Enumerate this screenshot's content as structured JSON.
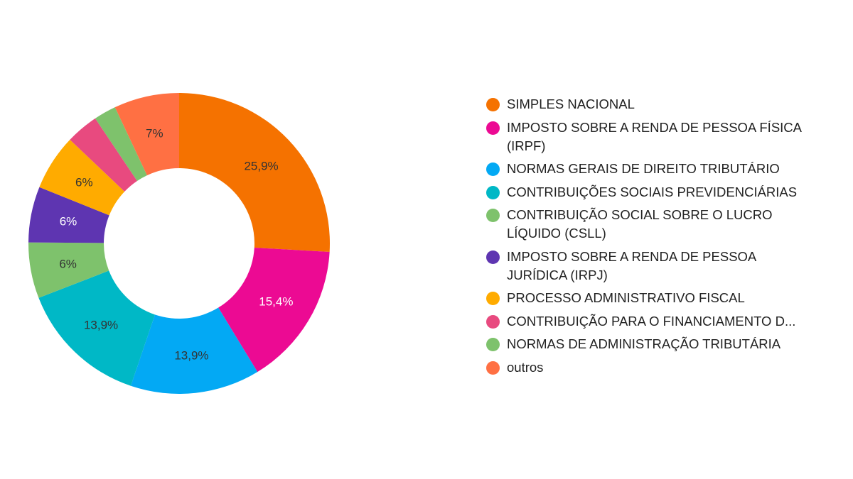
{
  "chart_data": {
    "type": "pie",
    "donut": true,
    "legend_position": "right",
    "slices": [
      {
        "name": "SIMPLES NACIONAL",
        "value": 25.9,
        "label": "25,9%",
        "color": "#f57200",
        "label_color": "#333333"
      },
      {
        "name": "IMPOSTO SOBRE A RENDA DE PESSOA FÍSICA (IRPF)",
        "value": 15.4,
        "label": "15,4%",
        "color": "#ec0a93",
        "label_color": "#ffffff"
      },
      {
        "name": "NORMAS GERAIS DE DIREITO TRIBUTÁRIO",
        "value": 13.9,
        "label": "13,9%",
        "color": "#03a9f4",
        "label_color": "#333333"
      },
      {
        "name": "CONTRIBUIÇÕES SOCIAIS PREVIDENCIÁRIAS",
        "value": 13.9,
        "label": "13,9%",
        "color": "#00b8c6",
        "label_color": "#333333"
      },
      {
        "name": "CONTRIBUIÇÃO SOCIAL SOBRE O LUCRO LÍQUIDO (CSLL)",
        "value": 6.0,
        "label": "6%",
        "color": "#7ec26c",
        "label_color": "#333333"
      },
      {
        "name": "IMPOSTO SOBRE A RENDA DE PESSOA JURÍDICA (IRPJ)",
        "value": 6.0,
        "label": "6%",
        "color": "#5e35b1",
        "label_color": "#ffffff"
      },
      {
        "name": "PROCESSO ADMINISTRATIVO FISCAL",
        "value": 6.0,
        "label": "6%",
        "color": "#ffab00",
        "label_color": "#333333"
      },
      {
        "name": "CONTRIBUIÇÃO PARA O FINANCIAMENTO D...",
        "value": 3.5,
        "label": "",
        "color": "#e84a7f",
        "label_color": "#333333"
      },
      {
        "name": "NORMAS DE ADMINISTRAÇÃO TRIBUTÁRIA",
        "value": 2.4,
        "label": "",
        "color": "#7ec26c",
        "label_color": "#333333"
      },
      {
        "name": "outros",
        "value": 7.0,
        "label": "7%",
        "color": "#ff7043",
        "label_color": "#333333"
      }
    ]
  }
}
